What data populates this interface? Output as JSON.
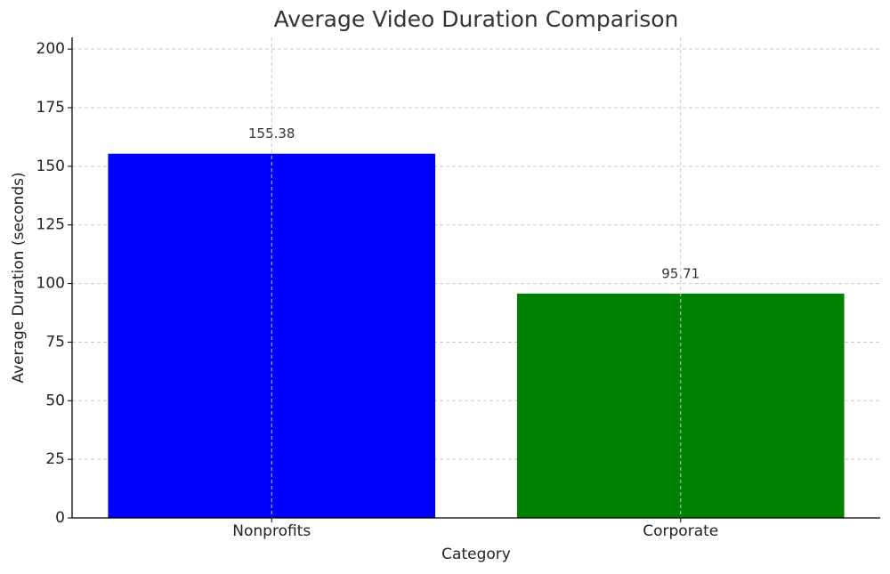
{
  "chart_data": {
    "type": "bar",
    "title": "Average Video Duration Comparison",
    "x_label": "Category",
    "y_label": "Average Duration (seconds)",
    "categories": [
      "Nonprofits",
      "Corporate"
    ],
    "series": [
      {
        "name": "Average Duration",
        "colors": [
          "#0000ff",
          "#008000"
        ],
        "values": [
          155.38,
          95.71
        ]
      }
    ],
    "ylim": [
      0,
      205
    ],
    "yticks": [
      0,
      25,
      50,
      75,
      100,
      125,
      150,
      175,
      200
    ],
    "grid": true
  }
}
